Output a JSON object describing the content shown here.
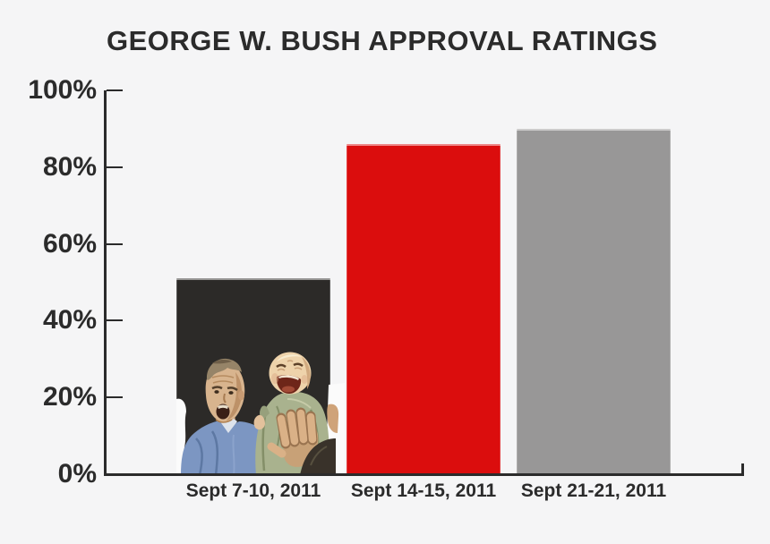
{
  "title": "GEORGE W. BUSH APPROVAL RATINGS",
  "colors": {
    "background": "#f5f5f6",
    "text": "#2b2b2b",
    "axis": "#2b2b2b",
    "bar_dark": "#2c2a28",
    "bar_red": "#db0d0d",
    "bar_gray": "#989797"
  },
  "chart_data": {
    "type": "bar",
    "title": "George W. Bush Approval Ratings",
    "categories": [
      "Sept 7-10, 2011",
      "Sept 14-15, 2011",
      "Sept 21-21, 2011"
    ],
    "values": [
      51,
      86,
      90
    ],
    "unit": "%",
    "bar_colors": [
      "#2c2a28",
      "#db0d0d",
      "#989797"
    ],
    "y_ticks": [
      "100%",
      "80%",
      "60%",
      "40%",
      "20%",
      "0%"
    ],
    "ylim": [
      0,
      100
    ],
    "xlabel": "",
    "ylabel": "",
    "grid": false,
    "legend": "none",
    "annotation": "First bar contains a cutout photo of George W. Bush holding up a crying baby"
  }
}
